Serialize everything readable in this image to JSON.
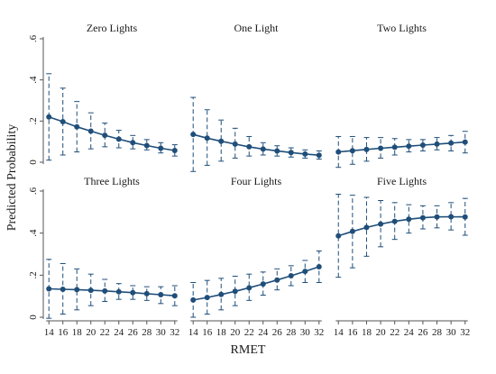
{
  "chart_data": {
    "type": "line",
    "x": [
      14,
      16,
      18,
      20,
      22,
      24,
      26,
      28,
      30,
      32
    ],
    "xlabel": "RMET",
    "ylabel": "Predicted Probability",
    "ylim": [
      0,
      0.6
    ],
    "yticks": [
      0,
      0.2,
      0.4,
      0.6
    ],
    "ytick_labels": [
      "0",
      ".2",
      ".4",
      ".6"
    ],
    "xtick_labels": [
      "14",
      "16",
      "18",
      "20",
      "22",
      "24",
      "26",
      "28",
      "30",
      "32"
    ],
    "grid": false,
    "colors": {
      "series": "#1f4e79"
    },
    "panels": [
      {
        "title": "Zero Lights",
        "values": [
          0.22,
          0.197,
          0.172,
          0.151,
          0.131,
          0.112,
          0.095,
          0.081,
          0.068,
          0.057
        ],
        "lower": [
          0.01,
          0.035,
          0.05,
          0.065,
          0.075,
          0.07,
          0.065,
          0.06,
          0.045,
          0.03
        ],
        "upper": [
          0.43,
          0.36,
          0.295,
          0.24,
          0.19,
          0.155,
          0.13,
          0.11,
          0.095,
          0.085
        ]
      },
      {
        "title": "One Light",
        "values": [
          0.135,
          0.117,
          0.102,
          0.088,
          0.075,
          0.064,
          0.055,
          0.047,
          0.04,
          0.034
        ],
        "lower": [
          -0.045,
          -0.015,
          0.005,
          0.02,
          0.03,
          0.035,
          0.03,
          0.025,
          0.02,
          0.015
        ],
        "upper": [
          0.315,
          0.255,
          0.205,
          0.165,
          0.125,
          0.095,
          0.08,
          0.07,
          0.06,
          0.055
        ]
      },
      {
        "title": "Two Lights",
        "values": [
          0.05,
          0.056,
          0.062,
          0.068,
          0.073,
          0.078,
          0.083,
          0.088,
          0.093,
          0.098
        ],
        "lower": [
          -0.025,
          -0.01,
          0.005,
          0.02,
          0.035,
          0.05,
          0.055,
          0.06,
          0.055,
          0.045
        ],
        "upper": [
          0.125,
          0.125,
          0.12,
          0.12,
          0.115,
          0.11,
          0.11,
          0.12,
          0.13,
          0.15
        ]
      },
      {
        "title": "Three Lights",
        "values": [
          0.135,
          0.133,
          0.131,
          0.128,
          0.125,
          0.121,
          0.117,
          0.112,
          0.107,
          0.102
        ],
        "lower": [
          -0.005,
          0.015,
          0.035,
          0.055,
          0.075,
          0.085,
          0.085,
          0.08,
          0.065,
          0.055
        ],
        "upper": [
          0.275,
          0.255,
          0.23,
          0.205,
          0.18,
          0.16,
          0.15,
          0.145,
          0.145,
          0.15
        ]
      },
      {
        "title": "Four Lights",
        "values": [
          0.082,
          0.094,
          0.108,
          0.123,
          0.14,
          0.158,
          0.177,
          0.197,
          0.218,
          0.24
        ],
        "lower": [
          0.0,
          0.015,
          0.035,
          0.055,
          0.08,
          0.105,
          0.13,
          0.15,
          0.165,
          0.165
        ],
        "upper": [
          0.165,
          0.175,
          0.185,
          0.195,
          0.205,
          0.215,
          0.23,
          0.245,
          0.27,
          0.315
        ]
      },
      {
        "title": "Five Lights",
        "values": [
          0.387,
          0.408,
          0.427,
          0.443,
          0.456,
          0.466,
          0.473,
          0.477,
          0.478,
          0.477
        ],
        "lower": [
          0.19,
          0.235,
          0.29,
          0.335,
          0.37,
          0.4,
          0.42,
          0.425,
          0.415,
          0.39
        ],
        "upper": [
          0.585,
          0.58,
          0.57,
          0.555,
          0.545,
          0.535,
          0.53,
          0.53,
          0.545,
          0.565
        ]
      }
    ]
  }
}
